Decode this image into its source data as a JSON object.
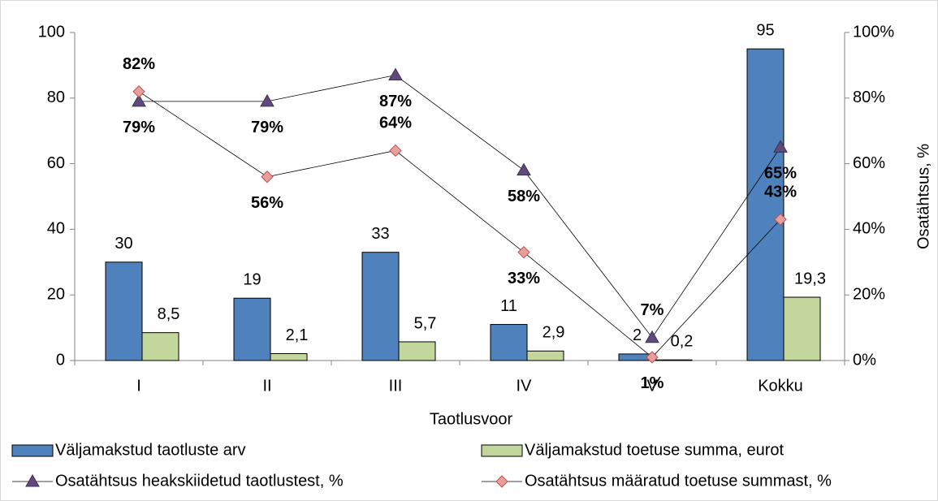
{
  "chart_data": {
    "type": "bar",
    "categories": [
      "I",
      "II",
      "III",
      "IV",
      "V",
      "Kokku"
    ],
    "x_label": "Taotlusvoor",
    "y2_label": "Osatähtsus, %",
    "ylim": [
      0,
      100
    ],
    "yticks": [
      0,
      20,
      40,
      60,
      80,
      100
    ],
    "y2lim": [
      0,
      100
    ],
    "y2ticks": [
      {
        "value": 0,
        "label": "0%"
      },
      {
        "value": 20,
        "label": "20%"
      },
      {
        "value": 40,
        "label": "40%"
      },
      {
        "value": 60,
        "label": "60%"
      },
      {
        "value": 80,
        "label": "80%"
      },
      {
        "value": 100,
        "label": "100%"
      }
    ],
    "series": [
      {
        "name": "Väljamakstud taotluste arv",
        "type": "bar",
        "color": "#4f81bd",
        "values": [
          30,
          19,
          33,
          11,
          2,
          95
        ]
      },
      {
        "name": "Väljamakstud toetuse summa, eurot",
        "type": "bar",
        "color": "#c3d69b",
        "values": [
          8.5,
          2.1,
          5.7,
          2.9,
          0.2,
          19.3
        ],
        "value_labels": [
          "8,5",
          "2,1",
          "5,7",
          "2,9",
          "0,2",
          "19,3"
        ]
      },
      {
        "name": "Osatähtsus heakskiidetud taotlustest, %",
        "type": "line",
        "axis": "y2",
        "marker": "triangle",
        "color": "#604a7b",
        "values": [
          79,
          79,
          87,
          58,
          7,
          65
        ],
        "value_labels": [
          "79%",
          "79%",
          "87%",
          "58%",
          "7%",
          "65%"
        ]
      },
      {
        "name": "Osatähtsus määratud toetuse summast, %",
        "type": "line",
        "axis": "y2",
        "marker": "diamond",
        "color": "#e6a09c",
        "values": [
          82,
          56,
          64,
          33,
          1,
          43
        ],
        "value_labels": [
          "82%",
          "56%",
          "64%",
          "33%",
          "1%",
          "43%"
        ]
      }
    ]
  }
}
